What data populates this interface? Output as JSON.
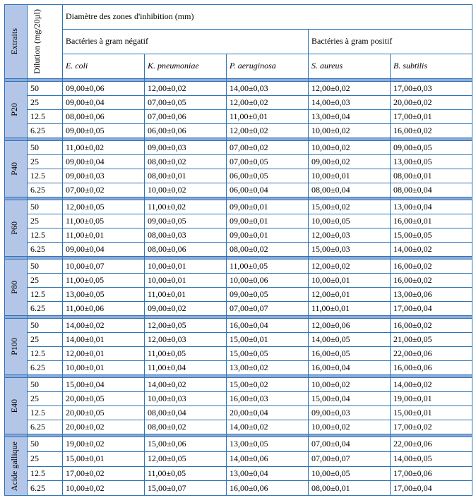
{
  "headers": {
    "extraits": "Extraits",
    "dilution": "Dilution (mg/20µl)",
    "main": "Diamètre des zones d'inhibition (mm)",
    "neg": "Bactéries à gram négatif",
    "pos": "Bactéries à gram positif",
    "cols": [
      "E. coli",
      "K. pneumoniae",
      "P. aeruginosa",
      "S. aureus",
      "B. subtilis"
    ]
  },
  "colors": {
    "border": "#2e74b5",
    "ext_bg": "#b4c6e7",
    "sep_bg": "#8eaadb"
  },
  "groups": [
    {
      "name": "P20",
      "rows": [
        {
          "d": "50",
          "v": [
            "09,00±0,06",
            "12,00±0,02",
            "14,00±0,03",
            "12,00±0,02",
            "17,00±0,03"
          ]
        },
        {
          "d": "25",
          "v": [
            "09,00±0,04",
            "07,00±0,05",
            "12,00±0,02",
            "14,00±0,03",
            "20,00±0,02"
          ]
        },
        {
          "d": "12.5",
          "v": [
            "08,00±0,06",
            "07,00±0,06",
            "11,00±0,01",
            "13,00±0,04",
            "17,00±0,01"
          ]
        },
        {
          "d": "6.25",
          "v": [
            "09,00±0,05",
            "06,00±0,06",
            "12,00±0,02",
            "10,00±0,02",
            "16,00±0,02"
          ]
        }
      ]
    },
    {
      "name": "P40",
      "rows": [
        {
          "d": "50",
          "v": [
            "11,00±0,02",
            "09,00±0,03",
            "07,00±0,02",
            "10,00±0,02",
            "09,00±0,05"
          ]
        },
        {
          "d": "25",
          "v": [
            "09,00±0,04",
            "08,00±0,02",
            "07,00±0,05",
            "09,00±0,02",
            "13,00±0,05"
          ]
        },
        {
          "d": "12.5",
          "v": [
            "09,00±0,03",
            "08,00±0,01",
            "06,00±0,05",
            "10,00±0,01",
            "08,00±0,01"
          ]
        },
        {
          "d": "6.25",
          "v": [
            "07,00±0,02",
            "10,00±0,02",
            "06,00±0,04",
            "08,00±0,04",
            "08,00±0,04"
          ]
        }
      ]
    },
    {
      "name": "P60",
      "rows": [
        {
          "d": "50",
          "v": [
            "12,00±0,05",
            "11,00±0,02",
            "09,00±0,01",
            "15,00±0,02",
            "13,00±0,04"
          ]
        },
        {
          "d": "25",
          "v": [
            "11,00±0,05",
            "09,00±0,05",
            "09,00±0,01",
            "10,00±0,05",
            "16,00±0,01"
          ]
        },
        {
          "d": "12.5",
          "v": [
            "11,00±0,01",
            "08,00±0,03",
            "09,00±0,01",
            "12,00±0,03",
            "15,00±0,05"
          ]
        },
        {
          "d": "6.25",
          "v": [
            "09,00±0,04",
            "08,00±0,06",
            "08,00±0,02",
            "15,00±0,03",
            "14,00±0,02"
          ]
        }
      ]
    },
    {
      "name": "P80",
      "rows": [
        {
          "d": "50",
          "v": [
            "10,00±0,07",
            "10,00±0,01",
            "11,00±0,05",
            "12,00±0,02",
            "16,00±0,02"
          ]
        },
        {
          "d": "25",
          "v": [
            "11,00±0,05",
            "10,00±0,01",
            "10,00±0,06",
            "10,00±0,01",
            "16,00±0,02"
          ]
        },
        {
          "d": "12.5",
          "v": [
            "13,00±0,05",
            "11,00±0,01",
            "09,00±0,05",
            "12,00±0,01",
            "13,00±0,06"
          ]
        },
        {
          "d": "6.25",
          "v": [
            "11,00±0,06",
            "09,00±0,02",
            "07,00±0,07",
            "11,00±0,01",
            "17,00±0,04"
          ]
        }
      ]
    },
    {
      "name": "P100",
      "rows": [
        {
          "d": "50",
          "v": [
            "14,00±0,02",
            "12,00±0,05",
            "16,00±0,04",
            "12,00±0,06",
            "16,00±0,02"
          ]
        },
        {
          "d": "25",
          "v": [
            "14,00±0,01",
            "12,00±0,03",
            "15,00±0,01",
            "14,00±0,05",
            "21,00±0,05"
          ]
        },
        {
          "d": "12.5",
          "v": [
            "12,00±0,01",
            "11,00±0,05",
            "15,00±0,05",
            "16,00±0,05",
            "22,00±0,06"
          ]
        },
        {
          "d": "6.25",
          "v": [
            "10,00±0,01",
            "11,00±0,04",
            "13,00±0,02",
            "16,00±0,04",
            "16,00±0,06"
          ]
        }
      ]
    },
    {
      "name": "E40",
      "rows": [
        {
          "d": "50",
          "v": [
            "15,00±0,04",
            "14,00±0,02",
            "15,00±0,02",
            "10,00±0,02",
            "14,00±0,02"
          ]
        },
        {
          "d": "25",
          "v": [
            "20,00±0,05",
            "10,00±0,03",
            "16,00±0,03",
            "15,00±0,04",
            "19,00±0,01"
          ]
        },
        {
          "d": "12.5",
          "v": [
            "20,00±0,05",
            "08,00±0,04",
            "20,00±0,04",
            "09,00±0,03",
            "15,00±0,01"
          ]
        },
        {
          "d": "6.25",
          "v": [
            "20,00±0,02",
            "08,00±0,02",
            "14,00±0,02",
            "10,00±0,02",
            "17,00±0,02"
          ]
        }
      ]
    },
    {
      "name": "Acide gallique",
      "rows": [
        {
          "d": "50",
          "v": [
            "19,00±0,02",
            "15,00±0,06",
            "13,00±0,05",
            "07,00±0,04",
            "22,00±0,06"
          ]
        },
        {
          "d": "25",
          "v": [
            "15,00±0,01",
            "12,00±0,05",
            "14,00±0,06",
            "07,00±0,07",
            "14,00±0,05"
          ]
        },
        {
          "d": "12.5",
          "v": [
            "17,00±0,02",
            "11,00±0,05",
            "13,00±0,04",
            "10,00±0,05",
            "17,00±0,06"
          ]
        },
        {
          "d": "6.25",
          "v": [
            "10,00±0,02",
            "15,00±0,07",
            "16,00±0,06",
            "08,00±0,01",
            "17,00±0,04"
          ]
        }
      ]
    }
  ]
}
